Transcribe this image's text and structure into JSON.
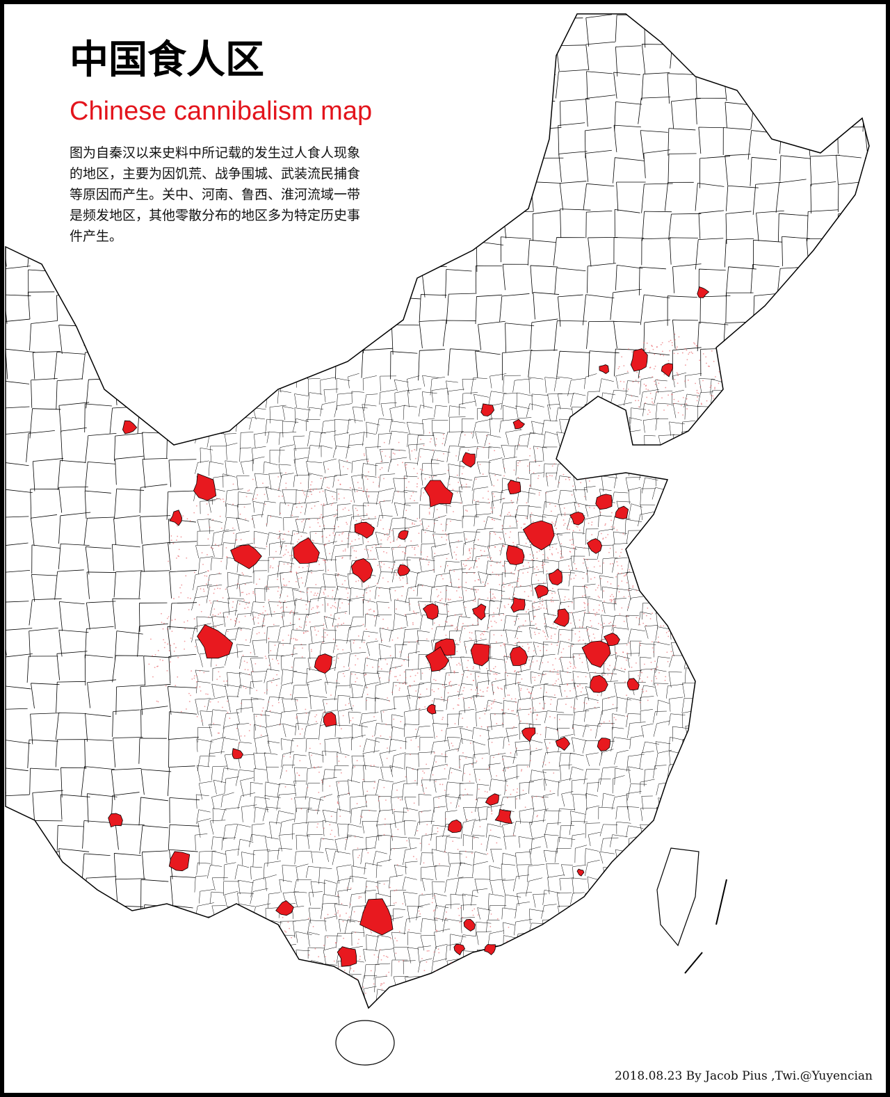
{
  "header": {
    "title": "中国食人区",
    "subtitle": "Chinese cannibalism map"
  },
  "description": {
    "lines": [
      "图为自秦汉以来史料中所记载的发生过人食人现象",
      "的地区，主要为因饥荒、战争围城、武装流民捕食",
      "等原因而产生。关中、河南、鲁西、淮河流域一带",
      "是频发地区，其他零散分布的地区多为特定历史事",
      "件产生。"
    ]
  },
  "credit": "2018.08.23 By Jacob Pius ,Twi.@Yuyencian"
}
